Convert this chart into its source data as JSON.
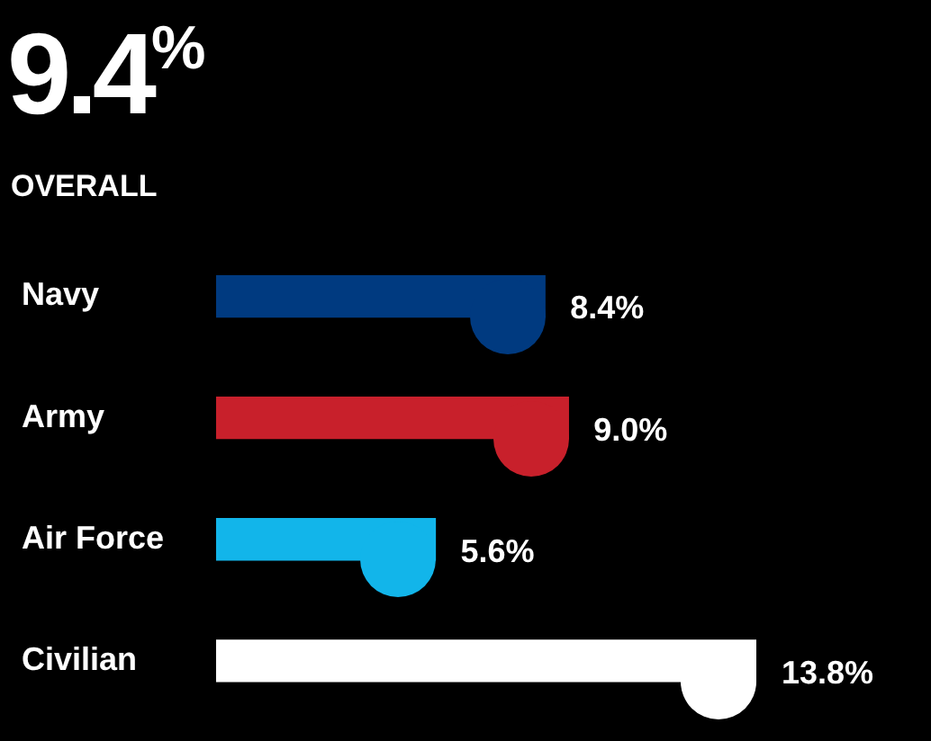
{
  "chart_data": {
    "type": "bar",
    "orientation": "horizontal",
    "title": "9.4$^{%}$",
    "subtitle": "OVERALL",
    "categories": [
      "Navy",
      "Army",
      "Air Force",
      "Civilian"
    ],
    "values": [
      8.4,
      9.0,
      5.6,
      13.8
    ],
    "colors": [
      "#003a80",
      "#c8202b",
      "#12b5ea",
      "#ffffff"
    ],
    "value_labels": [
      "8.4%",
      "9.0%",
      "5.6%",
      "13.8%"
    ],
    "legend": false
  }
}
